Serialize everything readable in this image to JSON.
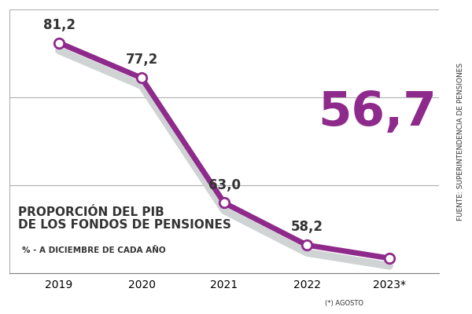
{
  "chart_data": {
    "type": "line",
    "title": "PROPORCIÓN DEL PIB\nDE LOS FONDOS DE PENSIONES",
    "subtitle": "% - A DICIEMBRE DE CADA AÑO",
    "annotations": [
      "(*) AGOSTO",
      "FUENTE: SUPERINTENDENCIA DE PENSIONES"
    ],
    "categories": [
      "2019",
      "2020",
      "2021",
      "2022",
      "2023*"
    ],
    "values": [
      81.2,
      77.2,
      63.0,
      58.2,
      56.7
    ],
    "value_labels": [
      "81,2",
      "77,2",
      "63,0",
      "58,2",
      "56,7"
    ],
    "color": "#8e2a8b",
    "marker": "circle",
    "ylim": [
      55,
      85
    ],
    "yticks": [
      55,
      65,
      75,
      85
    ],
    "grid": true,
    "data_labels": true,
    "tick_labels": "x"
  }
}
